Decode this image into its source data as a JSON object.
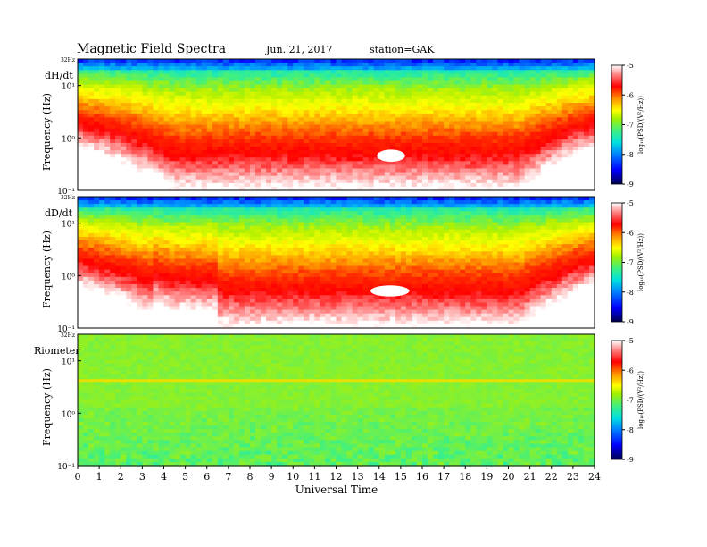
{
  "header": {
    "title": "Magnetic Field Spectra",
    "date": "Jun. 21, 2017",
    "station": "station=GAK"
  },
  "colors": {
    "text": "#000000",
    "colormap": [
      "#000060",
      "#0000ff",
      "#0090ff",
      "#00e0e0",
      "#40f080",
      "#b0f000",
      "#ffff00",
      "#ffa000",
      "#ff3000",
      "#ff0000",
      "#ff8080",
      "#ffffff"
    ]
  },
  "chart_data": [
    {
      "type": "heatmap",
      "label": "dH/dt",
      "top_tick": "32Hz",
      "ylabel": "Frequency (Hz)",
      "ytick_labels": [
        "10¹",
        "10⁰",
        "10⁻¹"
      ],
      "y_scale": "log",
      "ylim": [
        0.1,
        32
      ],
      "xlim": [
        0,
        24
      ],
      "colorbar": {
        "label": "log₁₀(PSD/(V²/Hz))",
        "ticks": [
          "-5",
          "-6",
          "-7",
          "-8",
          "-9"
        ],
        "range": [
          -9,
          -5
        ]
      },
      "features": {
        "saturated_low_freq": true,
        "white_blob_ut": [
          13.9,
          15.2
        ],
        "white_blob_hz": [
          0.35,
          0.6
        ]
      }
    },
    {
      "type": "heatmap",
      "label": "dD/dt",
      "top_tick": "32Hz",
      "ylabel": "Frequency (Hz)",
      "ytick_labels": [
        "10¹",
        "10⁰",
        "10⁻¹"
      ],
      "y_scale": "log",
      "ylim": [
        0.1,
        32
      ],
      "xlim": [
        0,
        24
      ],
      "colorbar": {
        "label": "log₁₀(PSD/(V²/Hz))",
        "ticks": [
          "-5",
          "-6",
          "-7",
          "-8",
          "-9"
        ],
        "range": [
          -9,
          -5
        ]
      },
      "features": {
        "saturated_low_freq": true,
        "white_blob_ut": [
          13.6,
          15.4
        ],
        "white_blob_hz": [
          0.4,
          0.65
        ]
      }
    },
    {
      "type": "heatmap",
      "label": "Riometer",
      "top_tick": "32Hz",
      "ylabel": "Frequency (Hz)",
      "ytick_labels": [
        "10¹",
        "10⁰",
        "10⁻¹"
      ],
      "y_scale": "log",
      "ylim": [
        0.1,
        32
      ],
      "xlim": [
        0,
        24
      ],
      "colorbar": {
        "label": "log₁₀(PSD/(V²/Hz))",
        "ticks": [
          "-5",
          "-6",
          "-7",
          "-8",
          "-9"
        ],
        "range": [
          -9,
          -5
        ]
      },
      "features": {
        "uniform_level": -7.5,
        "line_hz": 4.2
      }
    }
  ],
  "xaxis": {
    "label": "Universal Time",
    "ticks": [
      "0",
      "1",
      "2",
      "3",
      "4",
      "5",
      "6",
      "7",
      "8",
      "9",
      "10",
      "11",
      "12",
      "13",
      "14",
      "15",
      "16",
      "17",
      "18",
      "19",
      "20",
      "21",
      "22",
      "23",
      "24"
    ]
  }
}
